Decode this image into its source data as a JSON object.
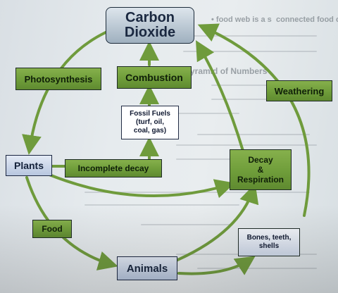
{
  "diagram": {
    "nodes": {
      "carbon_dioxide": [
        "Carbon",
        "Dioxide"
      ],
      "photosynthesis": "Photosynthesis",
      "combustion": "Combustion",
      "weathering": "Weathering",
      "fossil_fuels": [
        "Fossil Fuels",
        "(turf, oil,",
        "coal, gas)"
      ],
      "plants": "Plants",
      "incomplete_decay": "Incomplete decay",
      "decay_respiration": [
        "Decay",
        "&",
        "Respiration"
      ],
      "food": "Food",
      "bones": [
        "Bones, teeth,",
        "shells"
      ],
      "animals": "Animals"
    },
    "colors": {
      "arrow": "#6f9b3c",
      "green_box": "#74a33e",
      "blue_box": "#c3d0e6"
    }
  },
  "background_text": {
    "line1": "• food web is a s",
    "line2": "connected food chains",
    "line3": "Pyramid of Numbers"
  }
}
